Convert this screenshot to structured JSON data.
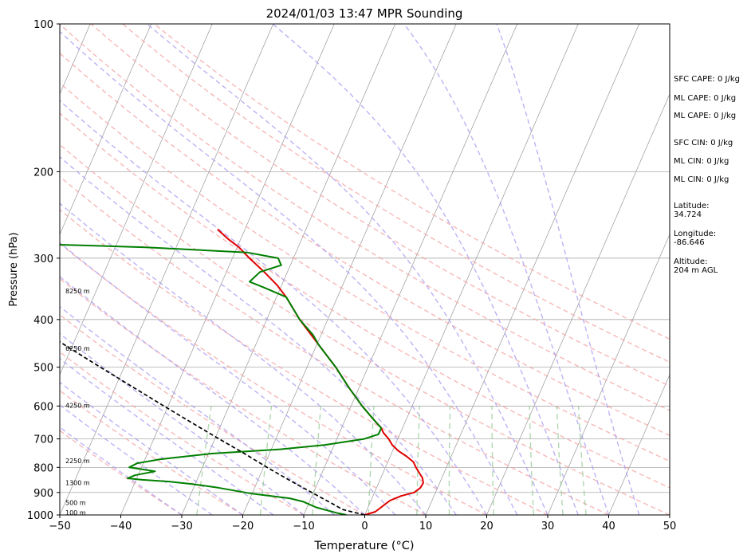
{
  "chart_data": {
    "type": "line",
    "title": "2024/01/03 13:47 MPR Sounding",
    "xlabel": "Temperature (°C)",
    "ylabel": "Pressure (hPa)",
    "x_tick_labels": [
      "−50",
      "−40",
      "−30",
      "−20",
      "−10",
      "0",
      "10",
      "20",
      "30",
      "40",
      "50"
    ],
    "y_tick_labels": [
      "100",
      "200",
      "300",
      "400",
      "500",
      "600",
      "700",
      "800",
      "900",
      "1000"
    ],
    "xlim": [
      -50,
      50
    ],
    "ylim": [
      1000,
      100
    ],
    "y_scale": "log",
    "grid": "on",
    "x_ticks": [
      -50,
      -40,
      -30,
      -20,
      -10,
      0,
      10,
      20,
      30,
      40,
      50
    ],
    "y_ticks": [
      100,
      200,
      300,
      400,
      500,
      600,
      700,
      800,
      900,
      1000
    ],
    "skew": 35,
    "colors": {
      "temperature": "#e00000",
      "dewpoint": "#007f00",
      "parcel": "#000000",
      "dry_adiabat": "#f4a0a0",
      "moist_adiabat": "#a898f0",
      "mixing_ratio": "#90c890",
      "isotherm": "#888888",
      "isobar": "#9a9a9a"
    },
    "series": [
      {
        "type": "temperature",
        "points": [
          {
            "p": 1000,
            "t": 0.0
          },
          {
            "p": 985,
            "t": 1.5
          },
          {
            "p": 960,
            "t": 2.3
          },
          {
            "p": 935,
            "t": 3.1
          },
          {
            "p": 915,
            "t": 4.6
          },
          {
            "p": 900,
            "t": 6.5
          },
          {
            "p": 880,
            "t": 7.2
          },
          {
            "p": 860,
            "t": 7.3
          },
          {
            "p": 840,
            "t": 6.8
          },
          {
            "p": 820,
            "t": 5.9
          },
          {
            "p": 800,
            "t": 5.0
          },
          {
            "p": 780,
            "t": 4.2
          },
          {
            "p": 760,
            "t": 2.7
          },
          {
            "p": 740,
            "t": 0.9
          },
          {
            "p": 720,
            "t": -0.5
          },
          {
            "p": 700,
            "t": -1.5
          },
          {
            "p": 680,
            "t": -2.8
          },
          {
            "p": 665,
            "t": -3.5
          },
          {
            "p": 640,
            "t": -5.3
          },
          {
            "p": 600,
            "t": -8.2
          },
          {
            "p": 550,
            "t": -11.7
          },
          {
            "p": 500,
            "t": -15.3
          },
          {
            "p": 450,
            "t": -19.7
          },
          {
            "p": 400,
            "t": -24.6
          },
          {
            "p": 360,
            "t": -28.4
          },
          {
            "p": 340,
            "t": -30.8
          },
          {
            "p": 320,
            "t": -33.8
          },
          {
            "p": 300,
            "t": -37.2
          },
          {
            "p": 285,
            "t": -39.7
          },
          {
            "p": 275,
            "t": -41.9
          },
          {
            "p": 262,
            "t": -44.5
          }
        ]
      },
      {
        "type": "dewpoint",
        "points": [
          {
            "p": 1000,
            "t": -3.0
          },
          {
            "p": 990,
            "t": -4.8
          },
          {
            "p": 965,
            "t": -8.5
          },
          {
            "p": 940,
            "t": -11.0
          },
          {
            "p": 925,
            "t": -13.5
          },
          {
            "p": 905,
            "t": -20.0
          },
          {
            "p": 880,
            "t": -26.0
          },
          {
            "p": 865,
            "t": -30.5
          },
          {
            "p": 855,
            "t": -34.5
          },
          {
            "p": 848,
            "t": -39.0
          },
          {
            "p": 842,
            "t": -41.5
          },
          {
            "p": 830,
            "t": -40.5
          },
          {
            "p": 815,
            "t": -37.5
          },
          {
            "p": 800,
            "t": -42.0
          },
          {
            "p": 785,
            "t": -41.0
          },
          {
            "p": 770,
            "t": -37.5
          },
          {
            "p": 750,
            "t": -29.5
          },
          {
            "p": 735,
            "t": -18.5
          },
          {
            "p": 720,
            "t": -11.5
          },
          {
            "p": 700,
            "t": -5.5
          },
          {
            "p": 685,
            "t": -3.5
          },
          {
            "p": 665,
            "t": -3.5
          },
          {
            "p": 640,
            "t": -5.3
          },
          {
            "p": 600,
            "t": -8.2
          },
          {
            "p": 550,
            "t": -11.7
          },
          {
            "p": 500,
            "t": -15.3
          },
          {
            "p": 450,
            "t": -19.7
          },
          {
            "p": 430,
            "t": -21.3
          },
          {
            "p": 400,
            "t": -24.6
          },
          {
            "p": 360,
            "t": -28.4
          },
          {
            "p": 345,
            "t": -32.5
          },
          {
            "p": 335,
            "t": -35.5
          },
          {
            "p": 320,
            "t": -34.5
          },
          {
            "p": 310,
            "t": -31.5
          },
          {
            "p": 300,
            "t": -32.5
          },
          {
            "p": 292,
            "t": -38.0
          },
          {
            "p": 285,
            "t": -55.0
          },
          {
            "p": 280,
            "t": -76.0
          }
        ]
      },
      {
        "type": "parcel",
        "points": [
          {
            "p": 1000,
            "t": 0.0
          },
          {
            "p": 975,
            "t": -4.0
          },
          {
            "p": 950,
            "t": -6.0
          },
          {
            "p": 900,
            "t": -10.3
          },
          {
            "p": 850,
            "t": -14.8
          },
          {
            "p": 800,
            "t": -19.4
          },
          {
            "p": 750,
            "t": -24.1
          },
          {
            "p": 700,
            "t": -29.3
          },
          {
            "p": 650,
            "t": -34.8
          },
          {
            "p": 600,
            "t": -40.7
          },
          {
            "p": 550,
            "t": -47.0
          },
          {
            "p": 500,
            "t": -53.9
          },
          {
            "p": 450,
            "t": -61.4
          },
          {
            "p": 400,
            "t": -69.7
          },
          {
            "p": 350,
            "t": -79.0
          },
          {
            "p": 300,
            "t": -89.6
          }
        ]
      }
    ],
    "height_labels": [
      {
        "label": "100 m",
        "p": 988
      },
      {
        "label": "500 m",
        "p": 943
      },
      {
        "label": "1300 m",
        "p": 860
      },
      {
        "label": "2250 m",
        "p": 775
      },
      {
        "label": "4250 m",
        "p": 598
      },
      {
        "label": "6250 m",
        "p": 458
      },
      {
        "label": "8250 m",
        "p": 350
      }
    ],
    "dry_adiabats_theta_c": [
      -30,
      -20,
      -10,
      0,
      10,
      20,
      30,
      40,
      50,
      60,
      70,
      80,
      90,
      100,
      110,
      120
    ],
    "moist_adiabats_start_c": [
      -30,
      -25,
      -20,
      -15,
      -10,
      -5,
      0,
      5,
      10,
      15,
      20,
      25,
      30,
      35,
      40,
      45
    ],
    "mixing_ratio_lines_gkg": [
      0.4,
      1,
      2,
      4,
      7,
      10,
      16,
      24,
      32,
      40
    ],
    "legend": "none",
    "annotations": [
      {
        "label": "SFC CAPE: 0 J/kg"
      },
      {
        "label": "ML CAPE: 0 J/kg"
      },
      {
        "label": "ML CAPE: 0 J/kg"
      },
      {
        "label": "SFC CIN: 0 J/kg"
      },
      {
        "label": "ML CIN: 0 J/kg"
      },
      {
        "label": "ML CIN: 0 J/kg"
      },
      {
        "label": "Latitude:\n34.724"
      },
      {
        "label": "Longitude:\n-86.646"
      },
      {
        "label": "Altitude:\n204 m AGL"
      }
    ]
  }
}
